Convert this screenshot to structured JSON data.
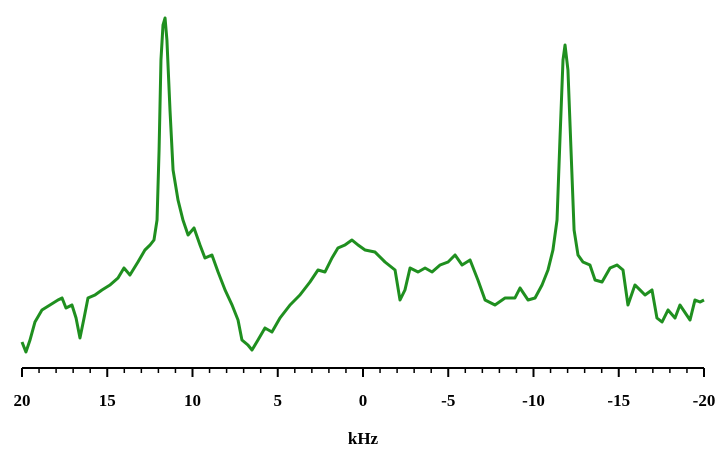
{
  "chart_data": {
    "type": "line",
    "x_label": "kHz",
    "xlim": [
      20,
      -20
    ],
    "xticks": [
      20,
      15,
      10,
      5,
      0,
      -5,
      -10,
      -15,
      -20
    ],
    "xminor_ticks": [
      20,
      19,
      18,
      17,
      16,
      15,
      14,
      13,
      12,
      11,
      10,
      9,
      8,
      7,
      6,
      5,
      4,
      3,
      2,
      1,
      0,
      -1,
      -2,
      -3,
      -4,
      -5,
      -6,
      -7,
      -8,
      -9,
      -10,
      -11,
      -12,
      -13,
      -14,
      -15,
      -16,
      -17,
      -18,
      -19,
      -20
    ],
    "ylim": [
      0,
      360
    ],
    "x": [
      20.0,
      19.77,
      19.53,
      19.24,
      18.83,
      18.36,
      17.89,
      17.65,
      17.42,
      17.07,
      16.83,
      16.6,
      16.36,
      16.13,
      15.72,
      15.31,
      14.84,
      14.37,
      14.02,
      13.67,
      13.2,
      12.79,
      12.49,
      12.26,
      12.08,
      11.96,
      11.85,
      11.73,
      11.61,
      11.5,
      11.32,
      11.14,
      10.85,
      10.56,
      10.26,
      9.91,
      9.56,
      9.27,
      8.86,
      8.5,
      8.09,
      7.68,
      7.33,
      7.1,
      6.75,
      6.51,
      6.16,
      5.75,
      5.34,
      4.87,
      4.28,
      3.7,
      3.11,
      2.64,
      2.23,
      1.82,
      1.47,
      1.06,
      0.65,
      0.29,
      -0.12,
      -0.7,
      -1.29,
      -1.88,
      -2.17,
      -2.46,
      -2.76,
      -3.23,
      -3.64,
      -4.05,
      -4.52,
      -4.99,
      -5.4,
      -5.81,
      -6.28,
      -6.74,
      -7.16,
      -7.74,
      -8.33,
      -8.91,
      -9.21,
      -9.68,
      -10.09,
      -10.5,
      -10.85,
      -11.14,
      -11.38,
      -11.55,
      -11.73,
      -11.85,
      -12.02,
      -12.2,
      -12.38,
      -12.61,
      -12.9,
      -13.31,
      -13.61,
      -14.02,
      -14.49,
      -14.9,
      -15.25,
      -15.54,
      -15.95,
      -16.25,
      -16.54,
      -16.95,
      -17.24,
      -17.54,
      -17.89,
      -18.3,
      -18.59,
      -19.18,
      -19.47,
      -19.77,
      -20.0
    ],
    "series": [
      {
        "color": "#1f8f1f",
        "values": [
          26,
          16,
          28,
          46,
          58,
          63,
          68,
          70,
          60,
          63,
          50,
          30,
          50,
          70,
          73,
          78,
          83,
          90,
          100,
          93,
          106,
          118,
          123,
          128,
          148,
          218,
          308,
          343,
          350,
          328,
          258,
          198,
          168,
          148,
          133,
          140,
          123,
          110,
          113,
          96,
          78,
          63,
          48,
          28,
          23,
          18,
          28,
          40,
          36,
          50,
          63,
          73,
          86,
          98,
          96,
          110,
          120,
          123,
          128,
          123,
          118,
          116,
          106,
          98,
          68,
          78,
          100,
          96,
          100,
          96,
          103,
          106,
          113,
          103,
          108,
          88,
          68,
          63,
          70,
          70,
          80,
          68,
          70,
          83,
          98,
          118,
          148,
          228,
          308,
          323,
          298,
          218,
          138,
          113,
          106,
          103,
          88,
          86,
          100,
          103,
          98,
          63,
          83,
          78,
          73,
          78,
          50,
          46,
          58,
          50,
          63,
          48,
          68,
          66,
          68
        ]
      }
    ]
  }
}
